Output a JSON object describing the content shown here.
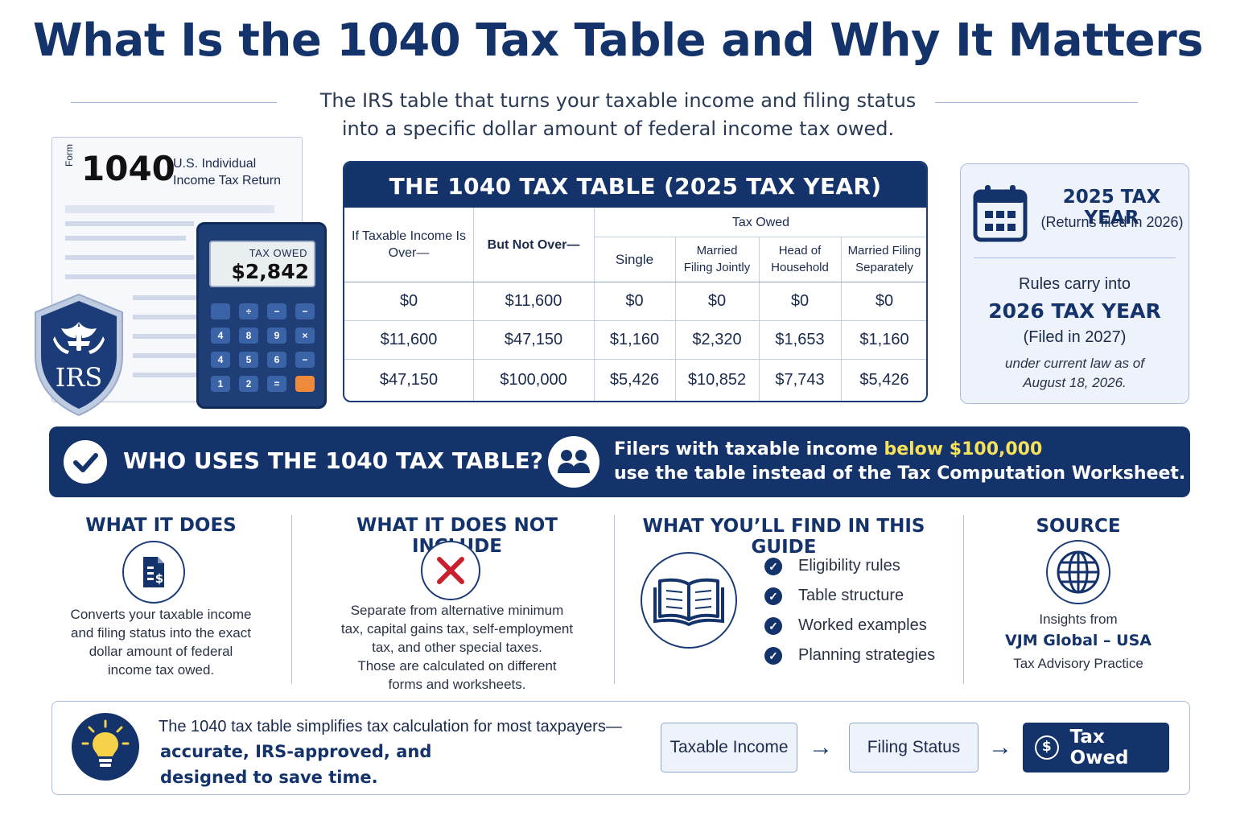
{
  "header": {
    "title": "What Is the 1040 Tax Table and Why It Matters",
    "subtitle_line1": "The IRS table that turns your taxable income and filing status",
    "subtitle_line2": "into a specific dollar amount of federal income tax owed."
  },
  "form_illustration": {
    "form_word": "Form",
    "form_number": "1040",
    "form_title_line1": "U.S. Individual",
    "form_title_line2": "Income Tax Return",
    "calculator_label": "TAX OWED",
    "calculator_value": "$2,842",
    "shield_text": "IRS"
  },
  "tax_table": {
    "title": "THE 1040 TAX TABLE (2025 TAX YEAR)",
    "col_over": "If Taxable Income Is Over—",
    "col_not_over": "But Not Over—",
    "group_label": "Tax Owed",
    "col_single": "Single",
    "col_mfj": "Married Filing Jointly",
    "col_hoh": "Head of Household",
    "col_mfs": "Married Filing Separately",
    "rows": [
      [
        "$0",
        "$11,600",
        "$0",
        "$0",
        "$0",
        "$0"
      ],
      [
        "$11,600",
        "$47,150",
        "$1,160",
        "$2,320",
        "$1,653",
        "$1,160"
      ],
      [
        "$47,150",
        "$100,000",
        "$5,426",
        "$10,852",
        "$7,743",
        "$5,426"
      ]
    ]
  },
  "year_card": {
    "year_title": "2025 TAX YEAR",
    "year_sub": "(Returns filed in 2026)",
    "carry_label": "Rules carry into",
    "next_year": "2026 TAX YEAR",
    "next_sub": "(Filed in 2027)",
    "note_line1": "under current law as of",
    "note_line2": "August 18, 2026."
  },
  "who_banner": {
    "heading": "WHO USES THE 1040 TAX TABLE?",
    "text_part1": "Filers with taxable income ",
    "text_highlight": "below $100,000",
    "text_line2": "use the table instead of the Tax Computation Worksheet."
  },
  "columns": {
    "what_it_does": {
      "title": "WHAT IT DOES",
      "text": [
        "Converts your taxable income",
        "and filing status into the exact",
        "dollar amount of federal",
        "income tax owed."
      ]
    },
    "not_include": {
      "title": "WHAT IT DOES NOT INCLUDE",
      "text": [
        "Separate from alternative minimum",
        "tax, capital gains tax, self-employment",
        "tax, and other special taxes.",
        "Those are calculated on different",
        "forms and worksheets."
      ]
    },
    "guide": {
      "title": "WHAT YOU’LL FIND IN THIS GUIDE",
      "items": [
        "Eligibility rules",
        "Table structure",
        "Worked examples",
        "Planning strategies"
      ]
    },
    "source": {
      "title": "SOURCE",
      "line1": "Insights from",
      "line2": "VJM Global – USA",
      "line3": "Tax Advisory Practice"
    }
  },
  "bottom": {
    "line1": "The 1040 tax table simplifies tax calculation for most taxpayers—",
    "line2": "accurate, IRS-approved, and",
    "line3": "designed to save time.",
    "flow": [
      "Taxable Income",
      "Filing Status",
      "Tax Owed"
    ]
  },
  "colors": {
    "navy": "#14336b",
    "highlight_yellow": "#f6e15a",
    "calc_orange": "#ee8a3a",
    "x_red": "#c8202c"
  }
}
